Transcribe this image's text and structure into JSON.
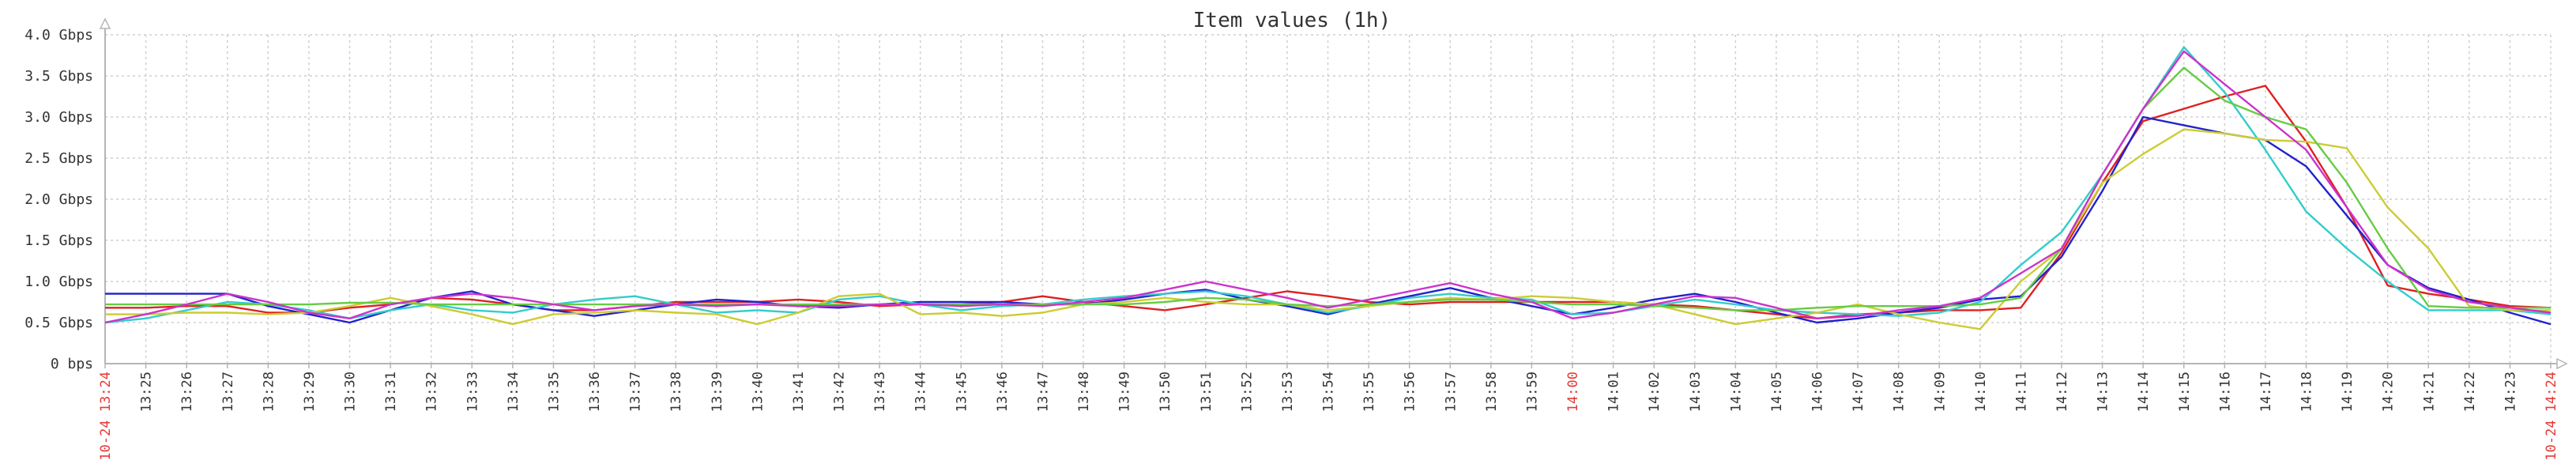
{
  "chart_data": {
    "type": "line",
    "title": "Item values (1h)",
    "ylim": [
      0,
      4
    ],
    "y_ticks": [
      {
        "value": 0,
        "label": "0 bps"
      },
      {
        "value": 0.5,
        "label": "0.5 Gbps"
      },
      {
        "value": 1.0,
        "label": "1.0 Gbps"
      },
      {
        "value": 1.5,
        "label": "1.5 Gbps"
      },
      {
        "value": 2.0,
        "label": "2.0 Gbps"
      },
      {
        "value": 2.5,
        "label": "2.5 Gbps"
      },
      {
        "value": 3.0,
        "label": "3.0 Gbps"
      },
      {
        "value": 3.5,
        "label": "3.5 Gbps"
      },
      {
        "value": 4.0,
        "label": "4.0 Gbps"
      }
    ],
    "x_labels": [
      "10-24 13:24",
      "13:25",
      "13:26",
      "13:27",
      "13:28",
      "13:29",
      "13:30",
      "13:31",
      "13:32",
      "13:33",
      "13:34",
      "13:35",
      "13:36",
      "13:37",
      "13:38",
      "13:39",
      "13:40",
      "13:41",
      "13:42",
      "13:43",
      "13:44",
      "13:45",
      "13:46",
      "13:47",
      "13:48",
      "13:49",
      "13:50",
      "13:51",
      "13:52",
      "13:53",
      "13:54",
      "13:55",
      "13:56",
      "13:57",
      "13:58",
      "13:59",
      "14:00",
      "14:01",
      "14:02",
      "14:03",
      "14:04",
      "14:05",
      "14:06",
      "14:07",
      "14:08",
      "14:09",
      "14:10",
      "14:11",
      "14:12",
      "14:13",
      "14:14",
      "14:15",
      "14:16",
      "14:17",
      "14:18",
      "14:19",
      "14:20",
      "14:21",
      "14:22",
      "14:23",
      "10-24 14:24"
    ],
    "highlight_labels": [
      "10-24 13:24",
      "14:00",
      "10-24 14:24"
    ],
    "grid": true,
    "series": [
      {
        "color": "#dd2222",
        "values": [
          0.68,
          0.68,
          0.7,
          0.7,
          0.62,
          0.62,
          0.68,
          0.72,
          0.8,
          0.78,
          0.72,
          0.65,
          0.65,
          0.7,
          0.75,
          0.75,
          0.75,
          0.78,
          0.75,
          0.7,
          0.72,
          0.72,
          0.75,
          0.82,
          0.75,
          0.7,
          0.65,
          0.72,
          0.8,
          0.88,
          0.82,
          0.75,
          0.72,
          0.75,
          0.75,
          0.75,
          0.75,
          0.75,
          0.72,
          0.7,
          0.65,
          0.6,
          0.55,
          0.6,
          0.62,
          0.65,
          0.65,
          0.68,
          1.35,
          2.2,
          2.95,
          3.1,
          3.25,
          3.38,
          2.7,
          1.9,
          0.95,
          0.85,
          0.78,
          0.7,
          0.68
        ]
      },
      {
        "color": "#2222cc",
        "values": [
          0.85,
          0.85,
          0.85,
          0.85,
          0.7,
          0.6,
          0.5,
          0.65,
          0.8,
          0.88,
          0.72,
          0.65,
          0.58,
          0.65,
          0.72,
          0.78,
          0.75,
          0.7,
          0.68,
          0.72,
          0.75,
          0.75,
          0.75,
          0.72,
          0.72,
          0.78,
          0.85,
          0.9,
          0.78,
          0.7,
          0.6,
          0.72,
          0.82,
          0.92,
          0.8,
          0.7,
          0.6,
          0.68,
          0.78,
          0.85,
          0.75,
          0.62,
          0.5,
          0.55,
          0.62,
          0.68,
          0.78,
          0.82,
          1.3,
          2.1,
          3.0,
          2.9,
          2.8,
          2.72,
          2.4,
          1.8,
          1.2,
          0.92,
          0.78,
          0.62,
          0.48
        ]
      },
      {
        "color": "#33cccc",
        "values": [
          0.5,
          0.55,
          0.65,
          0.75,
          0.72,
          0.65,
          0.55,
          0.65,
          0.72,
          0.65,
          0.62,
          0.72,
          0.78,
          0.82,
          0.72,
          0.62,
          0.65,
          0.62,
          0.78,
          0.82,
          0.72,
          0.65,
          0.7,
          0.72,
          0.78,
          0.82,
          0.85,
          0.88,
          0.82,
          0.72,
          0.62,
          0.7,
          0.8,
          0.85,
          0.8,
          0.78,
          0.6,
          0.62,
          0.7,
          0.78,
          0.72,
          0.65,
          0.62,
          0.6,
          0.58,
          0.62,
          0.75,
          1.2,
          1.6,
          2.3,
          3.1,
          3.85,
          3.3,
          2.6,
          1.85,
          1.4,
          1.0,
          0.65,
          0.65,
          0.65,
          0.6
        ]
      },
      {
        "color": "#cccc33",
        "values": [
          0.6,
          0.6,
          0.62,
          0.62,
          0.6,
          0.62,
          0.7,
          0.8,
          0.7,
          0.6,
          0.48,
          0.6,
          0.62,
          0.65,
          0.62,
          0.6,
          0.48,
          0.62,
          0.82,
          0.85,
          0.6,
          0.62,
          0.58,
          0.62,
          0.72,
          0.75,
          0.8,
          0.75,
          0.72,
          0.72,
          0.65,
          0.7,
          0.75,
          0.8,
          0.78,
          0.82,
          0.8,
          0.75,
          0.72,
          0.6,
          0.48,
          0.55,
          0.62,
          0.72,
          0.6,
          0.5,
          0.42,
          1.0,
          1.4,
          2.2,
          2.55,
          2.85,
          2.8,
          2.72,
          2.7,
          2.62,
          1.9,
          1.4,
          0.7,
          0.65,
          0.65
        ]
      },
      {
        "color": "#66cc44",
        "values": [
          0.72,
          0.72,
          0.72,
          0.72,
          0.72,
          0.72,
          0.74,
          0.74,
          0.72,
          0.72,
          0.72,
          0.72,
          0.72,
          0.72,
          0.72,
          0.72,
          0.72,
          0.72,
          0.72,
          0.72,
          0.72,
          0.72,
          0.72,
          0.72,
          0.72,
          0.72,
          0.75,
          0.8,
          0.78,
          0.72,
          0.7,
          0.72,
          0.75,
          0.78,
          0.78,
          0.75,
          0.72,
          0.72,
          0.7,
          0.68,
          0.65,
          0.65,
          0.68,
          0.7,
          0.7,
          0.7,
          0.72,
          0.8,
          1.4,
          2.3,
          3.1,
          3.6,
          3.2,
          3.0,
          2.85,
          2.2,
          1.4,
          0.7,
          0.68,
          0.68,
          0.68
        ]
      },
      {
        "color": "#cc33cc",
        "values": [
          0.5,
          0.6,
          0.72,
          0.85,
          0.75,
          0.62,
          0.55,
          0.72,
          0.8,
          0.85,
          0.8,
          0.72,
          0.65,
          0.7,
          0.72,
          0.7,
          0.72,
          0.7,
          0.7,
          0.72,
          0.72,
          0.7,
          0.72,
          0.7,
          0.75,
          0.8,
          0.9,
          1.0,
          0.9,
          0.8,
          0.68,
          0.78,
          0.88,
          0.98,
          0.85,
          0.75,
          0.55,
          0.62,
          0.72,
          0.82,
          0.8,
          0.68,
          0.55,
          0.58,
          0.65,
          0.7,
          0.8,
          1.1,
          1.4,
          2.3,
          3.1,
          3.8,
          3.4,
          3.0,
          2.6,
          1.9,
          1.2,
          0.9,
          0.75,
          0.68,
          0.62
        ]
      }
    ]
  }
}
